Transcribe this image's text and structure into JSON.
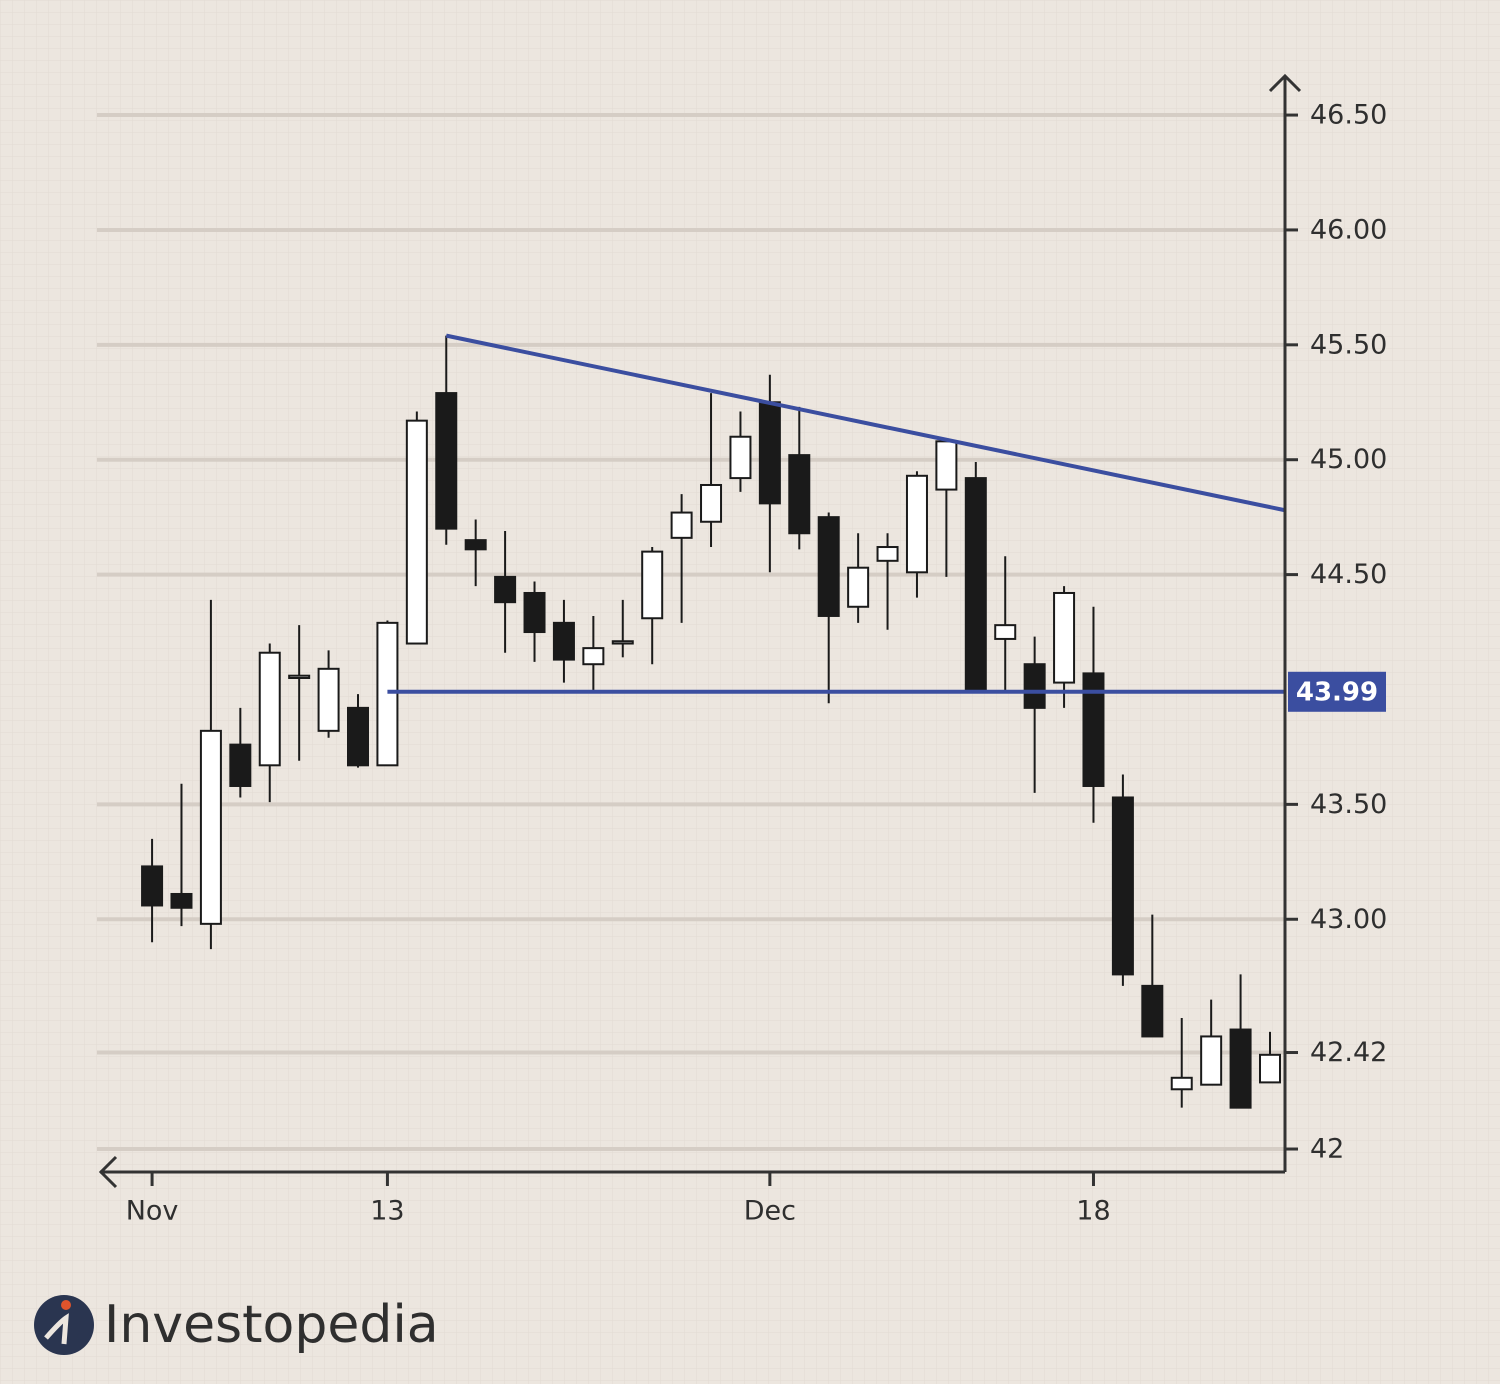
{
  "chart_data": {
    "type": "candlestick",
    "categories": [
      "Nov",
      null,
      null,
      null,
      null,
      null,
      null,
      null,
      "13",
      null,
      null,
      null,
      null,
      null,
      null,
      null,
      null,
      null,
      null,
      null,
      null,
      "Dec",
      null,
      null,
      null,
      null,
      null,
      null,
      null,
      null,
      null,
      null,
      "18",
      null,
      null,
      null,
      null,
      null,
      null
    ],
    "open": [
      43.23,
      43.11,
      42.98,
      43.76,
      43.67,
      44.05,
      43.82,
      43.92,
      43.67,
      44.2,
      45.29,
      44.65,
      44.49,
      44.42,
      44.29,
      44.11,
      44.2,
      44.31,
      44.66,
      44.73,
      44.92,
      45.25,
      45.02,
      44.75,
      44.36,
      44.56,
      44.51,
      44.87,
      44.92,
      44.22,
      44.11,
      44.03,
      44.07,
      43.53,
      42.71,
      42.26,
      42.28,
      42.52,
      42.29
    ],
    "high": [
      43.35,
      43.59,
      44.39,
      43.92,
      44.2,
      44.28,
      44.17,
      43.98,
      44.3,
      45.21,
      45.54,
      44.74,
      44.69,
      44.47,
      44.39,
      44.32,
      44.39,
      44.62,
      44.85,
      45.29,
      45.21,
      45.37,
      45.23,
      44.77,
      44.68,
      44.68,
      44.95,
      45.09,
      44.99,
      44.58,
      44.23,
      44.45,
      44.36,
      43.63,
      43.02,
      42.57,
      42.65,
      42.76,
      42.51
    ],
    "low": [
      42.9,
      42.97,
      42.87,
      43.53,
      43.51,
      43.69,
      43.79,
      43.66,
      43.67,
      44.2,
      44.63,
      44.45,
      44.16,
      44.12,
      44.03,
      43.99,
      44.14,
      44.11,
      44.29,
      44.62,
      44.86,
      44.51,
      44.61,
      43.94,
      44.29,
      44.26,
      44.4,
      44.49,
      43.99,
      43.99,
      43.55,
      43.92,
      43.42,
      42.71,
      42.49,
      42.18,
      42.28,
      42.18,
      42.29
    ],
    "close": [
      43.06,
      43.05,
      43.82,
      43.58,
      44.16,
      44.06,
      44.09,
      43.67,
      44.29,
      45.17,
      44.7,
      44.61,
      44.38,
      44.25,
      44.13,
      44.18,
      44.21,
      44.6,
      44.77,
      44.89,
      45.1,
      44.81,
      44.68,
      44.32,
      44.53,
      44.62,
      44.93,
      45.08,
      43.99,
      44.28,
      43.92,
      44.42,
      43.58,
      42.76,
      42.49,
      42.31,
      42.49,
      42.18,
      42.41
    ],
    "up_color": "#ffffff",
    "down_color": "#1a1a1a",
    "xlim": [
      -1.77,
      38.51
    ],
    "ylim": [
      41.9,
      46.67
    ],
    "yticks": [
      42,
      42.42,
      {
        "value": 43,
        "label": "43.00"
      },
      {
        "value": 43.5,
        "label": "43.50"
      },
      {
        "value": 44.5,
        "label": "44.50"
      },
      {
        "value": 45,
        "label": "45.00"
      },
      {
        "value": 45.5,
        "label": "45.50"
      },
      {
        "value": 46,
        "label": "46.00"
      },
      {
        "value": 46.5,
        "label": "46.50"
      }
    ],
    "grid": true,
    "resistance": {
      "start": [
        10,
        45.54
      ],
      "end": [
        38.51,
        44.78
      ],
      "color": "#3b4ea0"
    },
    "support": {
      "value": 43.99,
      "start": 8,
      "end": 38.51,
      "color": "#3b4ea0"
    },
    "brand": "Investopedia"
  }
}
